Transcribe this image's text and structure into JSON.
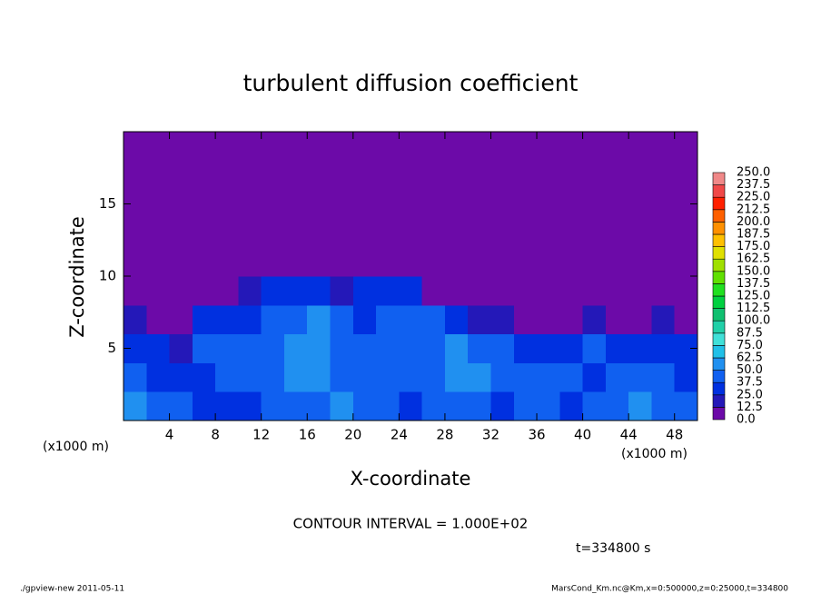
{
  "chart_data": {
    "type": "heatmap",
    "title": "turbulent diffusion coefficient",
    "x_label": "X-coordinate",
    "y_label": "Z-coordinate",
    "x_unit_left": "(x1000 m)",
    "x_unit_right": "(x1000 m)",
    "contour_note": "CONTOUR INTERVAL = 1.000E+02",
    "time_note": "t=334800 s",
    "footer_left": "./gpview-new   2011-05-11",
    "footer_right": "MarsCond_Km.nc@Km,x=0:500000,z=0:25000,t=334800",
    "xlim": [
      0,
      50
    ],
    "ylim": [
      0,
      20
    ],
    "xticks": [
      4,
      8,
      12,
      16,
      20,
      24,
      28,
      32,
      36,
      40,
      44,
      48
    ],
    "yticks": [
      5,
      10,
      15
    ],
    "levels": [
      {
        "value": 0,
        "label": "0.0"
      },
      12.5,
      {
        "value": 25,
        "label": "25.0"
      },
      37.5,
      {
        "value": 50,
        "label": "50.0"
      },
      62.5,
      {
        "value": 75,
        "label": "75.0"
      },
      87.5,
      {
        "value": 100,
        "label": "100.0"
      },
      112.5,
      {
        "value": 125,
        "label": "125.0"
      },
      137.5,
      {
        "value": 150,
        "label": "150.0"
      },
      162.5,
      {
        "value": 175,
        "label": "175.0"
      },
      187.5,
      {
        "value": 200,
        "label": "200.0"
      },
      212.5,
      {
        "value": 225,
        "label": "225.0"
      },
      237.5,
      {
        "value": 250,
        "label": "250.0"
      }
    ],
    "colors": [
      "#6c0aa8",
      "#2418b8",
      "#0030e0",
      "#1060f0",
      "#2090f0",
      "#20c0e8",
      "#40e0d8",
      "#20d0a8",
      "#10c070",
      "#00d040",
      "#20e020",
      "#60e000",
      "#a0e000",
      "#e0e000",
      "#ffc000",
      "#ff9000",
      "#ff6000",
      "#ff2000",
      "#f04848",
      "#f08888"
    ],
    "z_values": [
      [
        50,
        45,
        40,
        30,
        30,
        35,
        40,
        45,
        40,
        50,
        45,
        40,
        35,
        40,
        40,
        45,
        35,
        40,
        40,
        35,
        40,
        45,
        50,
        45,
        40
      ],
      [
        40,
        35,
        30,
        35,
        40,
        40,
        45,
        55,
        50,
        45,
        40,
        40,
        45,
        40,
        50,
        55,
        45,
        40,
        45,
        40,
        35,
        40,
        45,
        40,
        35
      ],
      [
        30,
        25,
        20,
        40,
        40,
        40,
        45,
        50,
        55,
        40,
        40,
        45,
        40,
        40,
        50,
        45,
        40,
        35,
        30,
        35,
        40,
        35,
        30,
        35,
        30
      ],
      [
        15,
        10,
        10,
        30,
        35,
        35,
        40,
        45,
        50,
        40,
        35,
        40,
        40,
        40,
        35,
        20,
        15,
        10,
        10,
        10,
        15,
        10,
        10,
        15,
        10
      ],
      [
        0,
        0,
        0,
        0,
        5,
        15,
        30,
        35,
        35,
        20,
        30,
        35,
        25,
        10,
        0,
        0,
        0,
        0,
        0,
        0,
        0,
        0,
        0,
        0,
        0
      ],
      [
        0,
        0,
        0,
        0,
        0,
        0,
        5,
        0,
        0,
        0,
        5,
        0,
        0,
        0,
        0,
        0,
        0,
        0,
        0,
        0,
        0,
        0,
        0,
        0,
        0
      ],
      [
        0,
        0,
        0,
        0,
        0,
        0,
        0,
        0,
        0,
        0,
        0,
        0,
        0,
        0,
        0,
        0,
        0,
        0,
        0,
        0,
        0,
        0,
        0,
        0,
        0
      ],
      [
        0,
        0,
        0,
        0,
        0,
        0,
        0,
        0,
        0,
        0,
        0,
        0,
        0,
        0,
        0,
        0,
        0,
        0,
        0,
        0,
        0,
        0,
        0,
        0,
        0
      ],
      [
        0,
        0,
        0,
        0,
        0,
        0,
        0,
        0,
        0,
        0,
        0,
        0,
        0,
        0,
        0,
        0,
        0,
        0,
        0,
        0,
        0,
        0,
        0,
        0,
        0
      ],
      [
        0,
        0,
        0,
        0,
        0,
        0,
        0,
        0,
        0,
        0,
        0,
        0,
        0,
        0,
        0,
        0,
        0,
        0,
        0,
        0,
        0,
        0,
        0,
        0,
        0
      ]
    ]
  }
}
